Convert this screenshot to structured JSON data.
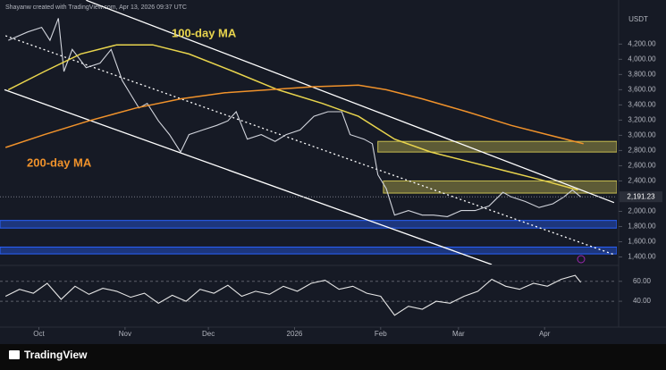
{
  "header": {
    "text": "Shayanw created with TradingView.com, Apr 13, 2026 09:37 UTC"
  },
  "footer": {
    "brand": "TradingView"
  },
  "chart_data": [
    {
      "type": "line",
      "currency": "USDT",
      "xlim": [
        -14,
        208
      ],
      "ylim": [
        1300,
        4780
      ],
      "xticks": [
        {
          "value": 0,
          "label": "Oct"
        },
        {
          "value": 31,
          "label": "Nov"
        },
        {
          "value": 61,
          "label": "Dec"
        },
        {
          "value": 92,
          "label": "2026"
        },
        {
          "value": 123,
          "label": "Feb"
        },
        {
          "value": 151,
          "label": "Mar"
        },
        {
          "value": 182,
          "label": "Apr"
        }
      ],
      "yticks": [
        {
          "value": 4200,
          "label": "4,200.00"
        },
        {
          "value": 4000,
          "label": "4,000.00"
        },
        {
          "value": 3800,
          "label": "3,800.00"
        },
        {
          "value": 3600,
          "label": "3,600.00"
        },
        {
          "value": 3400,
          "label": "3,400.00"
        },
        {
          "value": 3200,
          "label": "3,200.00"
        },
        {
          "value": 3000,
          "label": "3,000.00"
        },
        {
          "value": 2800,
          "label": "2,800.00"
        },
        {
          "value": 2600,
          "label": "2,600.00"
        },
        {
          "value": 2400,
          "label": "2,400.00"
        },
        {
          "value": 2000,
          "label": "2,000.00"
        },
        {
          "value": 1800,
          "label": "1,800.00"
        },
        {
          "value": 1600,
          "label": "1,600.00"
        },
        {
          "value": 1400,
          "label": "1,400.00"
        }
      ],
      "grid": false,
      "last_price": {
        "value": 2191.23,
        "label": "2,191.23"
      },
      "series": [
        {
          "color": "#d1d4dc",
          "x": [
            -11,
            -4,
            1,
            4,
            7,
            9,
            12,
            17,
            22,
            26,
            30,
            33,
            36,
            39,
            43,
            47,
            51,
            54,
            59,
            64,
            68,
            71,
            75,
            80,
            85,
            89,
            94,
            99,
            104,
            109,
            112,
            117,
            120,
            122,
            125,
            128,
            133,
            138,
            142,
            147,
            152,
            157,
            162,
            167,
            170,
            175,
            180,
            185,
            189,
            192,
            195
          ],
          "values": [
            4250,
            4360,
            4420,
            4250,
            4540,
            3840,
            4130,
            3890,
            3950,
            4130,
            3720,
            3540,
            3360,
            3420,
            3190,
            3010,
            2780,
            3010,
            3070,
            3130,
            3190,
            3310,
            2950,
            3010,
            2920,
            3010,
            3070,
            3250,
            3310,
            3310,
            3010,
            2950,
            2890,
            2480,
            2300,
            1950,
            2010,
            1950,
            1950,
            1930,
            2010,
            2010,
            2070,
            2250,
            2190,
            2130,
            2050,
            2100,
            2190,
            2280,
            2190
          ]
        },
        {
          "name": "100-day MA",
          "color": "#e8d44d",
          "x": [
            -11,
            2,
            15,
            28,
            41,
            54,
            70,
            86,
            102,
            115,
            128,
            141,
            154,
            167,
            180,
            194
          ],
          "values": [
            3600,
            3840,
            4070,
            4190,
            4190,
            4070,
            3840,
            3600,
            3420,
            3250,
            2950,
            2780,
            2660,
            2540,
            2420,
            2280
          ]
        },
        {
          "name": "200-day MA",
          "color": "#f0922b",
          "x": [
            -12,
            2,
            18,
            35,
            51,
            67,
            83,
            99,
            115,
            125,
            138,
            154,
            170,
            183,
            196
          ],
          "values": [
            2840,
            3010,
            3190,
            3360,
            3480,
            3560,
            3600,
            3640,
            3660,
            3600,
            3480,
            3310,
            3130,
            3010,
            2890
          ]
        }
      ],
      "trendlines": [
        {
          "x": [
            17,
            207
          ],
          "values": [
            4776,
            2115
          ],
          "dash": false
        },
        {
          "x": [
            -12.4,
            163
          ],
          "values": [
            3600,
            1300
          ],
          "dash": false
        },
        {
          "x": [
            -12,
            207
          ],
          "values": [
            4310,
            1430
          ],
          "dash": true
        }
      ],
      "zones": [
        {
          "x": [
            122,
            208
          ],
          "range": [
            2780,
            2920
          ],
          "color": "#c8be50"
        },
        {
          "x": [
            124,
            208
          ],
          "range": [
            2240,
            2400
          ],
          "color": "#c8be50"
        },
        {
          "x": [
            -14,
            208
          ],
          "range": [
            1780,
            1880
          ],
          "color": "#2962ff"
        },
        {
          "x": [
            -14,
            208
          ],
          "range": [
            1440,
            1530
          ],
          "color": "#2962ff"
        }
      ]
    },
    {
      "type": "line",
      "xlim": [
        -14,
        208
      ],
      "ylim": [
        15,
        75
      ],
      "yticks": [
        {
          "value": 60,
          "label": "60.00"
        },
        {
          "value": 40,
          "label": "40.00"
        }
      ],
      "series": [
        {
          "color": "#e6e6e6",
          "x": [
            -12,
            -7,
            -2,
            3,
            8,
            13,
            18,
            23,
            28,
            33,
            38,
            43,
            48,
            53,
            58,
            63,
            68,
            73,
            78,
            83,
            88,
            93,
            98,
            103,
            108,
            113,
            118,
            123,
            128,
            133,
            138,
            143,
            148,
            153,
            158,
            163,
            168,
            173,
            178,
            183,
            188,
            193,
            195
          ],
          "values": [
            45,
            52,
            48,
            58,
            42,
            55,
            47,
            53,
            50,
            44,
            48,
            38,
            46,
            40,
            52,
            48,
            56,
            45,
            50,
            47,
            55,
            50,
            58,
            61,
            52,
            55,
            48,
            45,
            26,
            35,
            32,
            40,
            38,
            45,
            50,
            62,
            55,
            52,
            58,
            55,
            62,
            66,
            59
          ]
        }
      ]
    }
  ]
}
